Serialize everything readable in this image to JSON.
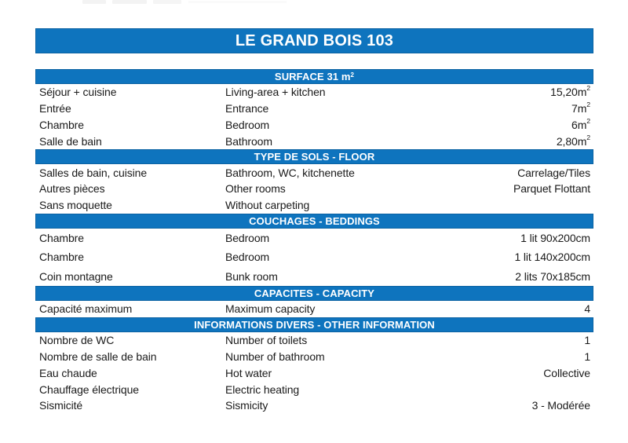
{
  "page": {
    "title": "LE GRAND BOIS 103"
  },
  "colors": {
    "accent_blue": "#0e74be",
    "accent_blue_dark": "#0b62a2",
    "text": "#1a1a1a"
  },
  "table": {
    "columns": [
      "label_fr",
      "label_en",
      "value"
    ],
    "sections": [
      {
        "id": "surface",
        "header": "SURFACE 31 m^2",
        "rows": [
          {
            "fr": "Séjour + cuisine",
            "en": "Living-area + kitchen",
            "value": "15,20m^2"
          },
          {
            "fr": "Entrée",
            "en": "Entrance",
            "value": "7m^2"
          },
          {
            "fr": "Chambre",
            "en": "Bedroom",
            "value": "6m^2"
          },
          {
            "fr": "Salle de bain",
            "en": "Bathroom",
            "value": "2,80m^2"
          }
        ]
      },
      {
        "id": "floor",
        "header": "TYPE DE SOLS - FLOOR",
        "rows": [
          {
            "fr": "Salles de bain, cuisine",
            "en": "Bathroom, WC, kitchenette",
            "value": "Carrelage/Tiles"
          },
          {
            "fr": "Autres pièces",
            "en": "Other rooms",
            "value": "Parquet Flottant"
          },
          {
            "fr": "Sans moquette",
            "en": "Without carpeting",
            "value": ""
          }
        ]
      },
      {
        "id": "beddings",
        "header": "COUCHAGES - BEDDINGS",
        "rows": [
          {
            "fr": "Chambre",
            "en": "Bedroom",
            "value": "1 lit 90x200cm"
          },
          {
            "fr": "Chambre",
            "en": "Bedroom",
            "value": "1 lit 140x200cm"
          },
          {
            "fr": "Coin montagne",
            "en": "Bunk room",
            "value": "2 lits 70x185cm"
          }
        ]
      },
      {
        "id": "capacity",
        "header": "CAPACITES - CAPACITY",
        "rows": [
          {
            "fr": "Capacité maximum",
            "en": "Maximum capacity",
            "value": "4"
          }
        ]
      },
      {
        "id": "other-information",
        "header": "INFORMATIONS DIVERS - OTHER INFORMATION",
        "rows": [
          {
            "fr": "Nombre de WC",
            "en": "Number of toilets",
            "value": "1"
          },
          {
            "fr": "Nombre de salle de bain",
            "en": "Number of bathroom",
            "value": "1"
          },
          {
            "fr": "Eau chaude",
            "en": "Hot water",
            "value": "Collective"
          },
          {
            "fr": "Chauffage électrique",
            "en": "Electric heating",
            "value": ""
          },
          {
            "fr": "Sismicité",
            "en": "Sismicity",
            "value": "3 - Modérée"
          }
        ]
      }
    ]
  }
}
